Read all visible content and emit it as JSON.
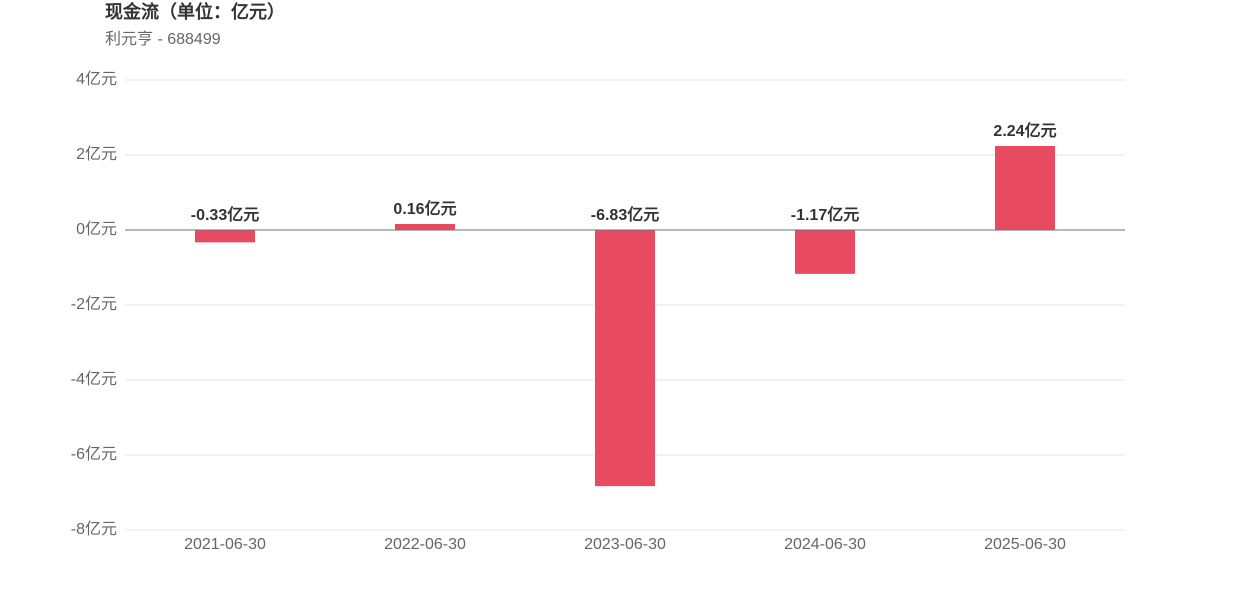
{
  "chart_data": {
    "type": "bar",
    "title": "现金流（单位：亿元）",
    "subtitle": "利元亨 - 688499",
    "categories": [
      "2021-06-30",
      "2022-06-30",
      "2023-06-30",
      "2024-06-30",
      "2025-06-30"
    ],
    "values": [
      -0.33,
      0.16,
      -6.83,
      -1.17,
      2.24
    ],
    "value_labels": [
      "-0.33亿元",
      "0.16亿元",
      "-6.83亿元",
      "-1.17亿元",
      "2.24亿元"
    ],
    "color": "#e84b5f",
    "ylim": [
      -8,
      4
    ],
    "yticks": [
      {
        "value": -8,
        "label": "-8亿元"
      },
      {
        "value": -6,
        "label": "-6亿元"
      },
      {
        "value": -4,
        "label": "-4亿元"
      },
      {
        "value": -2,
        "label": "-2亿元"
      },
      {
        "value": 0,
        "label": "0亿元"
      },
      {
        "value": 2,
        "label": "2亿元"
      },
      {
        "value": 4,
        "label": "4亿元"
      }
    ],
    "grid": true
  }
}
